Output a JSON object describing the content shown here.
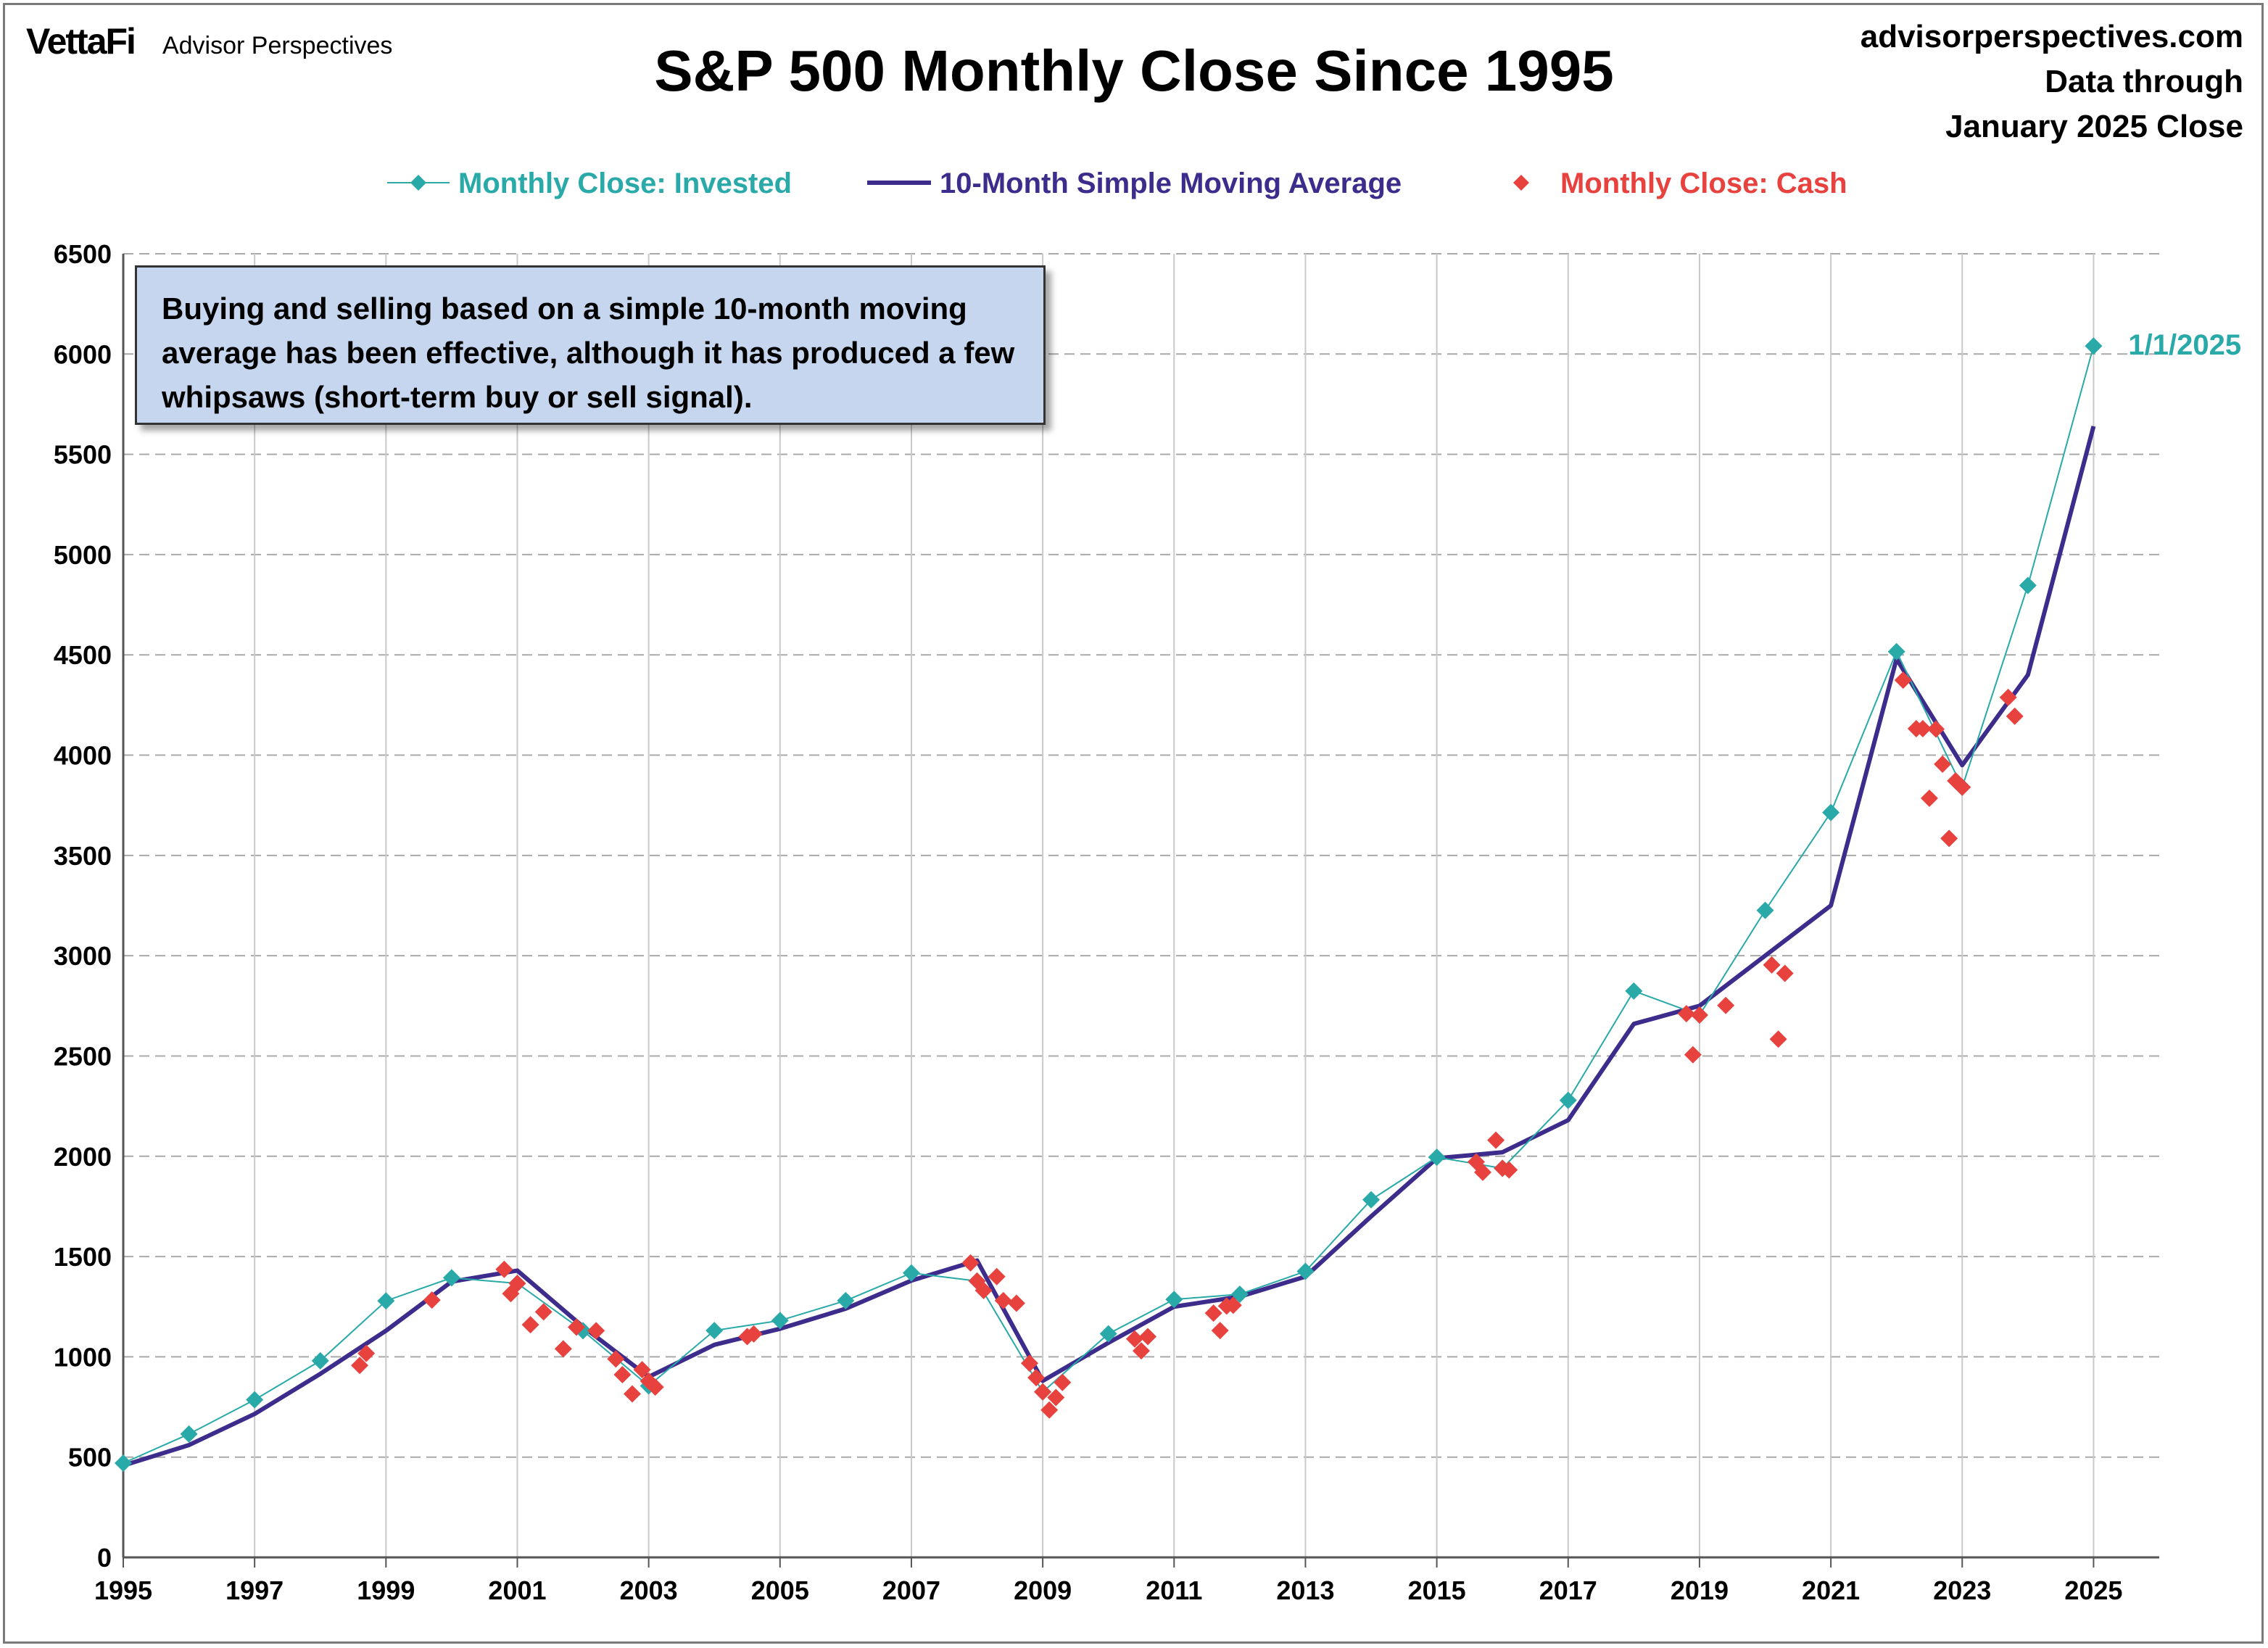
{
  "header": {
    "brand_main": "VettaFi",
    "brand_sub": "Advisor Perspectives",
    "title": "S&P 500 Monthly Close Since 1995",
    "source_lines": [
      "advisorperspectives.com",
      "Data through",
      "January 2025 Close"
    ]
  },
  "annotation": "Buying and selling based on a simple 10-month moving average has been effective, although it has produced a few whipsaws (short-term buy or sell signal).",
  "colors": {
    "invested": "#2aa9a9",
    "sma": "#3d2c8c",
    "cash": "#e8423f"
  },
  "chart_data": {
    "type": "line",
    "title": "S&P 500 Monthly Close Since 1995",
    "xlabel": "",
    "ylabel": "",
    "xlim": [
      1995,
      2026
    ],
    "ylim": [
      0,
      6500
    ],
    "yticks": [
      0,
      500,
      1000,
      1500,
      2000,
      2500,
      3000,
      3500,
      4000,
      4500,
      5000,
      5500,
      6000,
      6500
    ],
    "xticks": [
      1995,
      1997,
      1999,
      2001,
      2003,
      2005,
      2007,
      2009,
      2011,
      2013,
      2015,
      2017,
      2019,
      2021,
      2023,
      2025
    ],
    "grid": true,
    "legend_position": "top-center",
    "end_label": "1/1/2025",
    "x": [
      1995,
      1996,
      1997,
      1998,
      1999,
      2000,
      2001,
      2002,
      2003,
      2004,
      2005,
      2006,
      2007,
      2008,
      2009,
      2010,
      2011,
      2012,
      2013,
      2014,
      2015,
      2016,
      2017,
      2018,
      2019,
      2020,
      2021,
      2022,
      2023,
      2024,
      2025
    ],
    "series": [
      {
        "name": "Monthly Close: Invested",
        "marker": "diamond",
        "line": "thin",
        "values": [
          470,
          615,
          786,
          980,
          1279,
          1394,
          1366,
          1130,
          855,
          1131,
          1181,
          1280,
          1418,
          1378,
          825,
          1115,
          1286,
          1312,
          1426,
          1783,
          1995,
          1940,
          2279,
          2824,
          2704,
          3226,
          3714,
          4516,
          3840,
          4846,
          6040
        ]
      },
      {
        "name": "10-Month Simple Moving Average",
        "marker": "none",
        "line": "thick",
        "values": [
          458,
          560,
          715,
          915,
          1130,
          1375,
          1430,
          1150,
          900,
          1060,
          1140,
          1240,
          1380,
          1480,
          880,
          1070,
          1250,
          1300,
          1400,
          1700,
          1990,
          2020,
          2180,
          2660,
          2750,
          3000,
          3250,
          4480,
          3950,
          4400,
          5640
        ]
      },
      {
        "name": "Monthly Close: Cash",
        "marker": "diamond",
        "line": "none",
        "points": [
          [
            1998.6,
            957
          ],
          [
            1998.7,
            1017
          ],
          [
            1999.7,
            1283
          ],
          [
            2000.8,
            1436
          ],
          [
            2000.9,
            1315
          ],
          [
            2001.0,
            1366
          ],
          [
            2001.2,
            1160
          ],
          [
            2001.4,
            1224
          ],
          [
            2001.7,
            1040
          ],
          [
            2001.9,
            1148
          ],
          [
            2002.2,
            1130
          ],
          [
            2002.5,
            989
          ],
          [
            2002.6,
            911
          ],
          [
            2002.75,
            815
          ],
          [
            2002.9,
            936
          ],
          [
            2003.0,
            879
          ],
          [
            2003.1,
            849
          ],
          [
            2004.5,
            1101
          ],
          [
            2004.6,
            1114
          ],
          [
            2007.9,
            1468
          ],
          [
            2008.0,
            1378
          ],
          [
            2008.1,
            1331
          ],
          [
            2008.3,
            1400
          ],
          [
            2008.4,
            1280
          ],
          [
            2008.6,
            1267
          ],
          [
            2008.8,
            968
          ],
          [
            2008.9,
            896
          ],
          [
            2009.0,
            825
          ],
          [
            2009.1,
            735
          ],
          [
            2009.2,
            797
          ],
          [
            2009.3,
            872
          ],
          [
            2010.4,
            1089
          ],
          [
            2010.5,
            1030
          ],
          [
            2010.6,
            1101
          ],
          [
            2011.6,
            1218
          ],
          [
            2011.7,
            1131
          ],
          [
            2011.8,
            1253
          ],
          [
            2011.9,
            1257
          ],
          [
            2015.6,
            1972
          ],
          [
            2015.7,
            1920
          ],
          [
            2015.9,
            2080
          ],
          [
            2016.0,
            1940
          ],
          [
            2016.1,
            1932
          ],
          [
            2018.8,
            2711
          ],
          [
            2018.9,
            2506
          ],
          [
            2019.0,
            2704
          ],
          [
            2019.4,
            2752
          ],
          [
            2020.1,
            2954
          ],
          [
            2020.2,
            2584
          ],
          [
            2020.3,
            2912
          ],
          [
            2022.1,
            4374
          ],
          [
            2022.3,
            4132
          ],
          [
            2022.4,
            4132
          ],
          [
            2022.5,
            3785
          ],
          [
            2022.6,
            4130
          ],
          [
            2022.7,
            3955
          ],
          [
            2022.8,
            3585
          ],
          [
            2022.9,
            3872
          ],
          [
            2023.0,
            3840
          ],
          [
            2023.7,
            4288
          ],
          [
            2023.8,
            4194
          ]
        ]
      }
    ]
  }
}
